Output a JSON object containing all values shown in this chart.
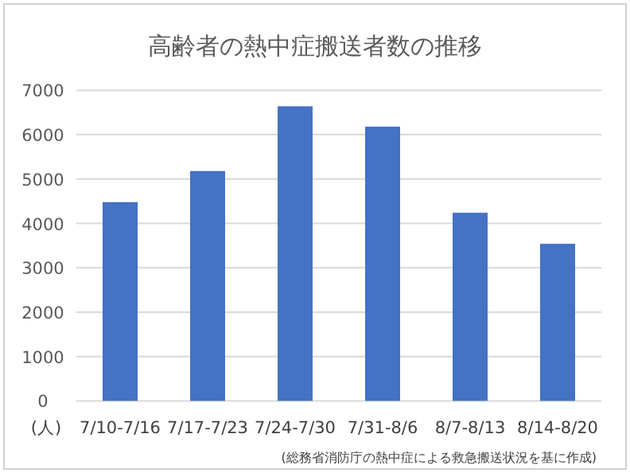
{
  "chart_data": {
    "type": "bar",
    "title": "高齢者の熱中症搬送者数の推移",
    "ylabel": "(人)",
    "categories": [
      "7/10-7/16",
      "7/17-7/23",
      "7/24-7/30",
      "7/31-8/6",
      "8/7-8/13",
      "8/14-8/20"
    ],
    "values": [
      4480,
      5180,
      6640,
      6180,
      4240,
      3540
    ],
    "color": "#4472c4",
    "ylim": [
      0,
      7000
    ],
    "yticks": [
      0,
      1000,
      2000,
      3000,
      4000,
      5000,
      6000,
      7000
    ],
    "grid": "y",
    "annotations": [
      "(総務省消防庁の熱中症による救急搬送状況を基に作成)"
    ]
  }
}
